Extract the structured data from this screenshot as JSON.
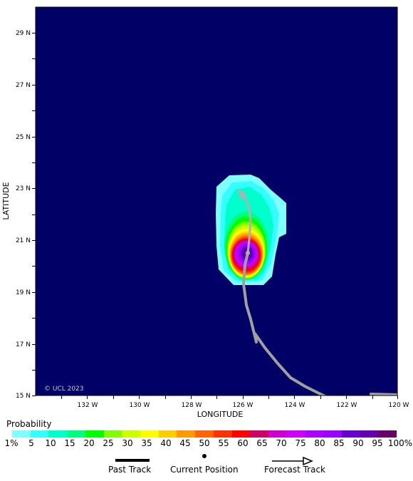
{
  "map": {
    "axis_labels": {
      "x": "LONGITUDE",
      "y": "LATITUDE"
    },
    "x_ticks": [
      "132 W",
      "130 W",
      "128 W",
      "126 W",
      "124 W",
      "122 W",
      "120 W"
    ],
    "y_ticks": [
      "29 N",
      "27 N",
      "25 N",
      "23 N",
      "21 N",
      "19 N",
      "17 N",
      "15 N"
    ],
    "background_color": "#000066",
    "watermark": "© UCL 2023"
  },
  "legend": {
    "title": "Probability",
    "colors": [
      "#80ffff",
      "#33ffff",
      "#00ffcc",
      "#00ff80",
      "#00ff00",
      "#80ff00",
      "#ccff00",
      "#ffff00",
      "#ffcc00",
      "#ff9900",
      "#ff6600",
      "#ff3300",
      "#ff0000",
      "#cc0066",
      "#cc00cc",
      "#cc00ff",
      "#aa00ff",
      "#9900ff",
      "#6600cc",
      "#6600aa",
      "#660066"
    ],
    "labels": [
      "1%",
      "5",
      "10",
      "15",
      "20",
      "25",
      "30",
      "35",
      "40",
      "45",
      "50",
      "55",
      "60",
      "65",
      "70",
      "75",
      "80",
      "85",
      "90",
      "95",
      "100%"
    ]
  },
  "key": {
    "past_track": "Past Track",
    "current_position": "Current Position",
    "forecast_track": "Forecast Track"
  }
}
